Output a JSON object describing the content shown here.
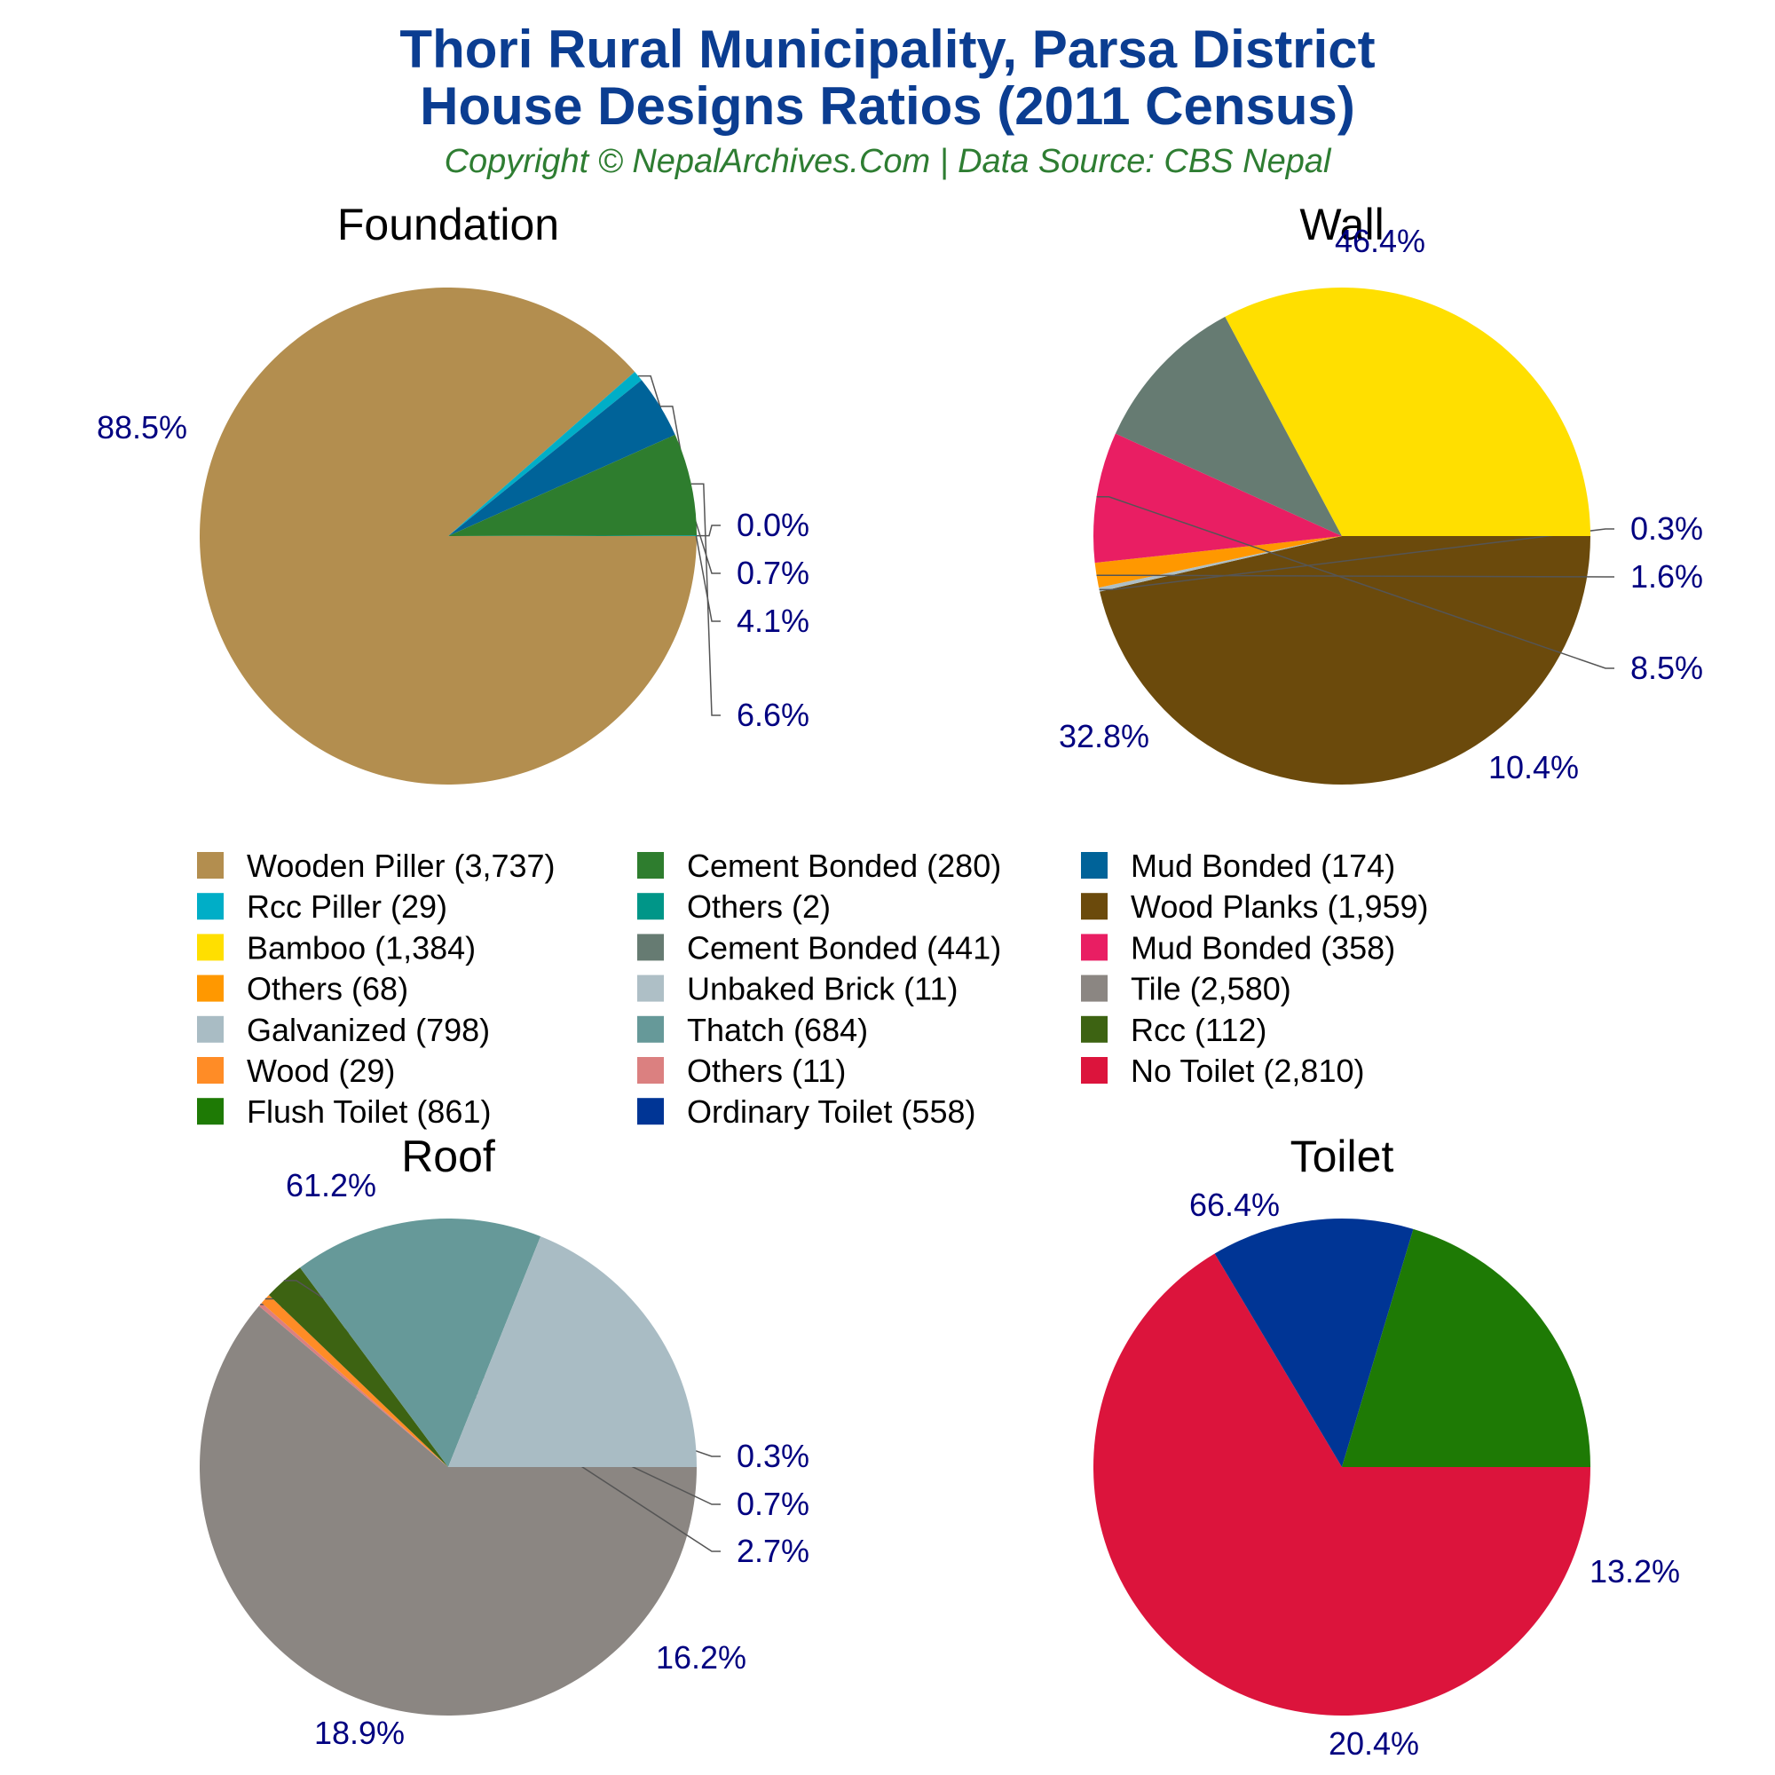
{
  "header": {
    "title_line1": "Thori Rural Municipality, Parsa District",
    "title_line2": "House Designs Ratios (2011 Census)",
    "subtitle": "Copyright © NepalArchives.Com | Data Source: CBS Nepal"
  },
  "chart_data": [
    {
      "type": "pie",
      "title": "Foundation",
      "slices": [
        {
          "label": "Wooden Piller",
          "value": 3737,
          "pct_label": "88.5%",
          "color": "#b38e4f"
        },
        {
          "label": "Rcc Piller",
          "value": 29,
          "pct_label": "0.7%",
          "color": "#00aec7"
        },
        {
          "label": "Mud Bonded",
          "value": 174,
          "pct_label": "4.1%",
          "color": "#006399"
        },
        {
          "label": "Cement Bonded",
          "value": 280,
          "pct_label": "6.6%",
          "color": "#2e7d2e"
        },
        {
          "label": "Others",
          "value": 2,
          "pct_label": "0.0%",
          "color": "#009688"
        }
      ]
    },
    {
      "type": "pie",
      "title": "Wall",
      "slices": [
        {
          "label": "Wood Planks",
          "value": 1959,
          "pct_label": "46.4%",
          "color": "#6b4a0c"
        },
        {
          "label": "Unbaked Brick",
          "value": 11,
          "pct_label": "0.3%",
          "color": "#aebfc6"
        },
        {
          "label": "Others",
          "value": 68,
          "pct_label": "1.6%",
          "color": "#ff9800"
        },
        {
          "label": "Mud Bonded",
          "value": 358,
          "pct_label": "8.5%",
          "color": "#e91e63"
        },
        {
          "label": "Cement Bonded",
          "value": 441,
          "pct_label": "10.4%",
          "color": "#667b72"
        },
        {
          "label": "Bamboo",
          "value": 1384,
          "pct_label": "32.8%",
          "color": "#ffdf00"
        }
      ]
    },
    {
      "type": "pie",
      "title": "Roof",
      "slices": [
        {
          "label": "Tile",
          "value": 2580,
          "pct_label": "61.2%",
          "color": "#8b8682"
        },
        {
          "label": "Others",
          "value": 11,
          "pct_label": "0.3%",
          "color": "#db8080"
        },
        {
          "label": "Wood",
          "value": 29,
          "pct_label": "0.7%",
          "color": "#ff8c26"
        },
        {
          "label": "Rcc",
          "value": 112,
          "pct_label": "2.7%",
          "color": "#3d6312"
        },
        {
          "label": "Thatch",
          "value": 684,
          "pct_label": "16.2%",
          "color": "#669999"
        },
        {
          "label": "Galvanized",
          "value": 798,
          "pct_label": "18.9%",
          "color": "#a9bcc4"
        }
      ]
    },
    {
      "type": "pie",
      "title": "Toilet",
      "slices": [
        {
          "label": "No Toilet",
          "value": 2810,
          "pct_label": "66.4%",
          "color": "#dc143c"
        },
        {
          "label": "Ordinary Toilet",
          "value": 558,
          "pct_label": "13.2%",
          "color": "#003595"
        },
        {
          "label": "Flush Toilet",
          "value": 861,
          "pct_label": "20.4%",
          "color": "#1e7a05"
        }
      ]
    }
  ],
  "legend": [
    {
      "text": "Wooden Piller (3,737)",
      "color": "#b38e4f"
    },
    {
      "text": "Cement Bonded (280)",
      "color": "#2e7d2e"
    },
    {
      "text": "Mud Bonded (174)",
      "color": "#006399"
    },
    {
      "text": "Rcc Piller (29)",
      "color": "#00aec7"
    },
    {
      "text": "Others (2)",
      "color": "#009688"
    },
    {
      "text": "Wood Planks (1,959)",
      "color": "#6b4a0c"
    },
    {
      "text": "Bamboo (1,384)",
      "color": "#ffdf00"
    },
    {
      "text": "Cement Bonded (441)",
      "color": "#667b72"
    },
    {
      "text": "Mud Bonded (358)",
      "color": "#e91e63"
    },
    {
      "text": "Others (68)",
      "color": "#ff9800"
    },
    {
      "text": "Unbaked Brick (11)",
      "color": "#aebfc6"
    },
    {
      "text": "Tile (2,580)",
      "color": "#8b8682"
    },
    {
      "text": "Galvanized (798)",
      "color": "#a9bcc4"
    },
    {
      "text": "Thatch (684)",
      "color": "#669999"
    },
    {
      "text": "Rcc (112)",
      "color": "#3d6312"
    },
    {
      "text": "Wood (29)",
      "color": "#ff8c26"
    },
    {
      "text": "Others (11)",
      "color": "#db8080"
    },
    {
      "text": "No Toilet (2,810)",
      "color": "#dc143c"
    },
    {
      "text": "Flush Toilet (861)",
      "color": "#1e7a05"
    },
    {
      "text": "Ordinary Toilet (558)",
      "color": "#003595"
    }
  ]
}
